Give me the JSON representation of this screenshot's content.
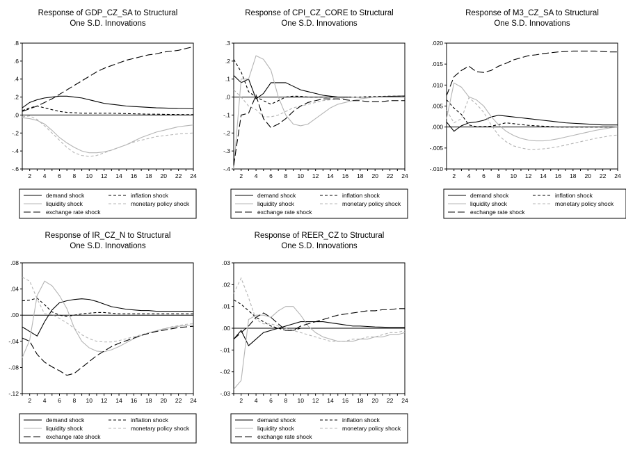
{
  "legend_labels": {
    "demand": "demand shock",
    "inflation": "inflation shock",
    "liquidity": "liquidity shock",
    "monetary": "monetary policy shock",
    "exchange": "exchange rate shock"
  },
  "series_styles": {
    "demand": {
      "color": "#000000",
      "dash": "solid"
    },
    "inflation": {
      "color": "#000000",
      "dash": "short-dash"
    },
    "liquidity": {
      "color": "#b4b4b4",
      "dash": "solid"
    },
    "monetary": {
      "color": "#b4b4b4",
      "dash": "short-dash"
    },
    "exchange": {
      "color": "#000000",
      "dash": "long-dash"
    }
  },
  "chart_data": [
    {
      "type": "line",
      "title": [
        "Response of GDP_CZ_SA to Structural",
        "One S.D. Innovations"
      ],
      "x": [
        1,
        2,
        3,
        4,
        5,
        6,
        7,
        8,
        9,
        10,
        11,
        12,
        13,
        14,
        15,
        16,
        17,
        18,
        19,
        20,
        21,
        22,
        23,
        24
      ],
      "xticks": [
        2,
        4,
        6,
        8,
        10,
        12,
        14,
        16,
        18,
        20,
        22,
        24
      ],
      "ylim": [
        -0.6,
        0.8
      ],
      "yticks": [
        -0.6,
        -0.4,
        -0.2,
        0.0,
        0.2,
        0.4,
        0.6,
        0.8
      ],
      "ytick_labels": [
        "-.6",
        "-.4",
        "-.2",
        ".0",
        ".2",
        ".4",
        ".6",
        ".8"
      ],
      "series": [
        {
          "key": "demand",
          "values": [
            0.08,
            0.14,
            0.17,
            0.19,
            0.2,
            0.21,
            0.21,
            0.2,
            0.19,
            0.17,
            0.15,
            0.13,
            0.12,
            0.11,
            0.1,
            0.095,
            0.09,
            0.085,
            0.08,
            0.078,
            0.075,
            0.073,
            0.072,
            0.07
          ]
        },
        {
          "key": "inflation",
          "values": [
            0.05,
            0.08,
            0.1,
            0.08,
            0.06,
            0.04,
            0.03,
            0.025,
            0.02,
            0.02,
            0.02,
            0.02,
            0.02,
            0.018,
            0.016,
            0.014,
            0.012,
            0.01,
            0.01,
            0.008,
            0.007,
            0.006,
            0.005,
            0.005
          ]
        },
        {
          "key": "liquidity",
          "values": [
            -0.03,
            -0.04,
            -0.06,
            -0.1,
            -0.17,
            -0.25,
            -0.31,
            -0.36,
            -0.4,
            -0.42,
            -0.42,
            -0.41,
            -0.39,
            -0.36,
            -0.33,
            -0.29,
            -0.25,
            -0.22,
            -0.19,
            -0.17,
            -0.15,
            -0.13,
            -0.12,
            -0.11
          ]
        },
        {
          "key": "monetary",
          "values": [
            -0.02,
            -0.01,
            -0.05,
            -0.12,
            -0.2,
            -0.28,
            -0.36,
            -0.42,
            -0.45,
            -0.46,
            -0.45,
            -0.42,
            -0.39,
            -0.36,
            -0.33,
            -0.3,
            -0.28,
            -0.26,
            -0.24,
            -0.23,
            -0.22,
            -0.21,
            -0.205,
            -0.2
          ]
        },
        {
          "key": "exchange",
          "values": [
            0.04,
            0.07,
            0.1,
            0.14,
            0.18,
            0.23,
            0.28,
            0.33,
            0.38,
            0.43,
            0.48,
            0.52,
            0.55,
            0.58,
            0.61,
            0.63,
            0.65,
            0.67,
            0.68,
            0.7,
            0.71,
            0.72,
            0.74,
            0.76
          ]
        }
      ]
    },
    {
      "type": "line",
      "title": [
        "Response of CPI_CZ_CORE to Structural",
        "One S.D. Innovations"
      ],
      "x": [
        1,
        2,
        3,
        4,
        5,
        6,
        7,
        8,
        9,
        10,
        11,
        12,
        13,
        14,
        15,
        16,
        17,
        18,
        19,
        20,
        21,
        22,
        23,
        24
      ],
      "xticks": [
        2,
        4,
        6,
        8,
        10,
        12,
        14,
        16,
        18,
        20,
        22,
        24
      ],
      "ylim": [
        -0.4,
        0.3
      ],
      "yticks": [
        -0.4,
        -0.3,
        -0.2,
        -0.1,
        0.0,
        0.1,
        0.2,
        0.3
      ],
      "ytick_labels": [
        "-.4",
        "-.3",
        "-.2",
        "-.1",
        ".0",
        ".1",
        ".2",
        ".3"
      ],
      "series": [
        {
          "key": "demand",
          "values": [
            0.12,
            0.08,
            0.1,
            -0.01,
            0.02,
            0.08,
            0.08,
            0.08,
            0.06,
            0.04,
            0.03,
            0.02,
            0.01,
            0.005,
            0.0,
            0.0,
            0.0,
            0.0,
            0.0,
            0.0,
            0.002,
            0.004,
            0.005,
            0.006
          ]
        },
        {
          "key": "inflation",
          "values": [
            0.21,
            0.14,
            0.03,
            0.0,
            -0.02,
            -0.04,
            -0.02,
            0.0,
            0.005,
            0.004,
            0.0,
            0.0,
            0.0,
            0.0,
            0.0,
            0.0,
            0.0,
            0.0,
            0.002,
            0.003,
            0.004,
            0.005,
            0.005,
            0.005
          ]
        },
        {
          "key": "liquidity",
          "values": [
            -0.4,
            0.1,
            0.1,
            0.23,
            0.21,
            0.15,
            0.0,
            -0.1,
            -0.15,
            -0.16,
            -0.15,
            -0.12,
            -0.09,
            -0.06,
            -0.04,
            -0.03,
            -0.02,
            -0.01,
            -0.005,
            0.0,
            0.0,
            0.0,
            0.0,
            0.0
          ]
        },
        {
          "key": "monetary",
          "values": [
            0.04,
            0.0,
            -0.05,
            -0.07,
            -0.11,
            -0.11,
            -0.1,
            -0.08,
            -0.06,
            -0.05,
            -0.04,
            -0.03,
            -0.02,
            -0.015,
            -0.01,
            -0.005,
            0.0,
            0.0,
            0.0,
            0.0,
            0.0,
            0.0,
            0.0,
            0.0
          ]
        },
        {
          "key": "exchange",
          "values": [
            -0.38,
            -0.1,
            -0.09,
            0.01,
            -0.12,
            -0.17,
            -0.15,
            -0.12,
            -0.08,
            -0.05,
            -0.03,
            -0.02,
            -0.01,
            -0.01,
            -0.01,
            -0.015,
            -0.02,
            -0.02,
            -0.025,
            -0.025,
            -0.025,
            -0.02,
            -0.02,
            -0.02
          ]
        }
      ]
    },
    {
      "type": "line",
      "title": [
        "Response of M3_CZ_SA to Structural",
        "One S.D. Innovations"
      ],
      "x": [
        1,
        2,
        3,
        4,
        5,
        6,
        7,
        8,
        9,
        10,
        11,
        12,
        13,
        14,
        15,
        16,
        17,
        18,
        19,
        20,
        21,
        22,
        23,
        24
      ],
      "xticks": [
        2,
        4,
        6,
        8,
        10,
        12,
        14,
        16,
        18,
        20,
        22,
        24
      ],
      "ylim": [
        -0.01,
        0.02
      ],
      "yticks": [
        -0.01,
        -0.005,
        0.0,
        0.005,
        0.01,
        0.015,
        0.02
      ],
      "ytick_labels": [
        "-.010",
        "-.005",
        ".000",
        ".005",
        ".010",
        ".015",
        ".020"
      ],
      "series": [
        {
          "key": "demand",
          "values": [
            0.0012,
            -0.001,
            0.0003,
            0.001,
            0.0012,
            0.0016,
            0.0024,
            0.0028,
            0.0026,
            0.0024,
            0.0022,
            0.002,
            0.0018,
            0.0016,
            0.0014,
            0.0012,
            0.001,
            0.0009,
            0.0008,
            0.0007,
            0.0006,
            0.0005,
            0.0005,
            0.0005
          ]
        },
        {
          "key": "inflation",
          "values": [
            0.0065,
            0.0045,
            0.003,
            0.0005,
            0.0001,
            0.0001,
            0.0002,
            0.0006,
            0.001,
            0.0008,
            0.0006,
            0.0004,
            0.0003,
            0.0002,
            0.0001,
            0.0,
            0.0,
            0.0,
            0.0,
            0.0,
            0.0,
            0.0,
            0.0,
            0.0
          ]
        },
        {
          "key": "liquidity",
          "values": [
            0.002,
            0.0105,
            0.0095,
            0.0072,
            0.0065,
            0.005,
            0.0025,
            0.0005,
            -0.001,
            -0.002,
            -0.0027,
            -0.0031,
            -0.0033,
            -0.0033,
            -0.0031,
            -0.0028,
            -0.0024,
            -0.002,
            -0.0016,
            -0.0012,
            -0.0008,
            -0.0005,
            -0.0002,
            0.0
          ]
        },
        {
          "key": "monetary",
          "values": [
            0.004,
            0.001,
            0.002,
            0.007,
            0.0055,
            0.0035,
            0.0005,
            -0.002,
            -0.0035,
            -0.0045,
            -0.005,
            -0.0053,
            -0.0053,
            -0.0052,
            -0.005,
            -0.0047,
            -0.0043,
            -0.0039,
            -0.0035,
            -0.0031,
            -0.0027,
            -0.0024,
            -0.0021,
            -0.0019
          ]
        },
        {
          "key": "exchange",
          "values": [
            0.0075,
            0.012,
            0.0135,
            0.0145,
            0.0132,
            0.013,
            0.0135,
            0.0145,
            0.0152,
            0.016,
            0.0165,
            0.017,
            0.0172,
            0.0175,
            0.0177,
            0.0179,
            0.018,
            0.0181,
            0.0181,
            0.0181,
            0.0181,
            0.018,
            0.0179,
            0.0179
          ]
        }
      ]
    },
    {
      "type": "line",
      "title": [
        "Response of IR_CZ_N to Structural",
        "One S.D. Innovations"
      ],
      "x": [
        1,
        2,
        3,
        4,
        5,
        6,
        7,
        8,
        9,
        10,
        11,
        12,
        13,
        14,
        15,
        16,
        17,
        18,
        19,
        20,
        21,
        22,
        23,
        24
      ],
      "xticks": [
        2,
        4,
        6,
        8,
        10,
        12,
        14,
        16,
        18,
        20,
        22,
        24
      ],
      "ylim": [
        -0.12,
        0.08
      ],
      "yticks": [
        -0.12,
        -0.08,
        -0.04,
        0.0,
        0.04,
        0.08
      ],
      "ytick_labels": [
        "-.12",
        "-.08",
        "-.04",
        ".00",
        ".04",
        ".08"
      ],
      "series": [
        {
          "key": "demand",
          "values": [
            -0.018,
            -0.025,
            -0.032,
            -0.01,
            0.008,
            0.019,
            0.022,
            0.024,
            0.025,
            0.024,
            0.021,
            0.017,
            0.013,
            0.011,
            0.009,
            0.008,
            0.007,
            0.007,
            0.006,
            0.006,
            0.006,
            0.006,
            0.006,
            0.006
          ]
        },
        {
          "key": "inflation",
          "values": [
            0.022,
            0.023,
            0.026,
            0.016,
            0.005,
            0.0,
            -0.002,
            0.0,
            0.002,
            0.003,
            0.004,
            0.004,
            0.003,
            0.002,
            0.002,
            0.002,
            0.002,
            0.002,
            0.002,
            0.002,
            0.002,
            0.002,
            0.002,
            0.002
          ]
        },
        {
          "key": "liquidity",
          "values": [
            -0.065,
            -0.038,
            0.03,
            0.052,
            0.045,
            0.03,
            0.01,
            -0.02,
            -0.04,
            -0.05,
            -0.055,
            -0.056,
            -0.053,
            -0.048,
            -0.042,
            -0.036,
            -0.031,
            -0.027,
            -0.024,
            -0.021,
            -0.019,
            -0.017,
            -0.016,
            -0.015
          ]
        },
        {
          "key": "monetary",
          "values": [
            0.058,
            0.052,
            0.025,
            0.002,
            0.001,
            -0.005,
            -0.012,
            -0.02,
            -0.03,
            -0.036,
            -0.04,
            -0.041,
            -0.041,
            -0.039,
            -0.036,
            -0.033,
            -0.03,
            -0.027,
            -0.024,
            -0.021,
            -0.018,
            -0.016,
            -0.014,
            -0.013
          ]
        },
        {
          "key": "exchange",
          "values": [
            -0.035,
            -0.04,
            -0.06,
            -0.072,
            -0.079,
            -0.085,
            -0.092,
            -0.089,
            -0.08,
            -0.071,
            -0.062,
            -0.055,
            -0.048,
            -0.043,
            -0.039,
            -0.035,
            -0.031,
            -0.028,
            -0.025,
            -0.023,
            -0.021,
            -0.019,
            -0.018,
            -0.017
          ]
        }
      ]
    },
    {
      "type": "line",
      "title": [
        "Response of REER_CZ to Structural",
        "One S.D. Innovations"
      ],
      "x": [
        1,
        2,
        3,
        4,
        5,
        6,
        7,
        8,
        9,
        10,
        11,
        12,
        13,
        14,
        15,
        16,
        17,
        18,
        19,
        20,
        21,
        22,
        23,
        24
      ],
      "xticks": [
        2,
        4,
        6,
        8,
        10,
        12,
        14,
        16,
        18,
        20,
        22,
        24
      ],
      "ylim": [
        -0.03,
        0.03
      ],
      "yticks": [
        -0.03,
        -0.02,
        -0.01,
        0.0,
        0.01,
        0.02,
        0.03
      ],
      "ytick_labels": [
        "-.03",
        "-.02",
        "-.01",
        ".00",
        ".01",
        ".02",
        ".03"
      ],
      "series": [
        {
          "key": "demand",
          "values": [
            -0.005,
            -0.001,
            -0.008,
            -0.005,
            -0.002,
            -0.001,
            0.0,
            0.001,
            0.002,
            0.003,
            0.003,
            0.003,
            0.003,
            0.0025,
            0.002,
            0.0015,
            0.001,
            0.001,
            0.0008,
            0.0006,
            0.0005,
            0.0004,
            0.0004,
            0.0004
          ]
        },
        {
          "key": "inflation",
          "values": [
            0.013,
            0.011,
            0.008,
            0.005,
            0.003,
            0.001,
            0.0,
            -0.001,
            -0.001,
            0.0,
            0.0,
            0.0,
            0.0,
            0.0,
            0.0,
            0.0,
            0.0,
            0.0,
            0.0,
            0.0,
            0.0,
            0.0,
            0.0,
            0.0
          ]
        },
        {
          "key": "liquidity",
          "values": [
            -0.028,
            -0.024,
            0.004,
            0.006,
            0.006,
            0.005,
            0.008,
            0.01,
            0.01,
            0.006,
            0.001,
            -0.002,
            -0.004,
            -0.005,
            -0.006,
            -0.006,
            -0.006,
            -0.005,
            -0.005,
            -0.004,
            -0.004,
            -0.003,
            -0.003,
            -0.002
          ]
        },
        {
          "key": "monetary",
          "values": [
            0.016,
            0.023,
            0.014,
            0.004,
            0.002,
            0.002,
            0.001,
            0.0,
            -0.001,
            -0.002,
            -0.003,
            -0.004,
            -0.005,
            -0.006,
            -0.006,
            -0.006,
            -0.005,
            -0.005,
            -0.004,
            -0.004,
            -0.003,
            -0.002,
            -0.002,
            -0.001
          ]
        },
        {
          "key": "exchange",
          "values": [
            -0.005,
            -0.002,
            0.001,
            0.005,
            0.007,
            0.005,
            0.002,
            -0.001,
            -0.001,
            0.001,
            0.002,
            0.003,
            0.004,
            0.005,
            0.006,
            0.0065,
            0.007,
            0.0075,
            0.008,
            0.008,
            0.0085,
            0.0085,
            0.009,
            0.009
          ]
        }
      ]
    }
  ]
}
